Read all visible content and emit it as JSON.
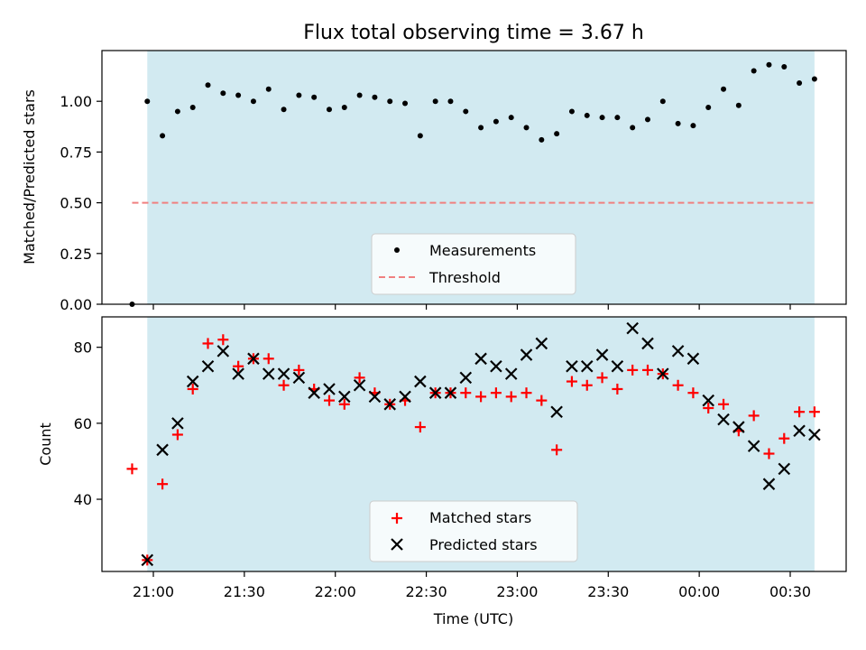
{
  "chart_data": [
    {
      "type": "scatter",
      "title": "Flux total observing time = 3.67 h",
      "xlabel": "",
      "ylabel": "Matched/Predicted stars",
      "ylim": [
        0,
        1.25
      ],
      "yticks": [
        "0.00",
        "0.25",
        "0.50",
        "0.75",
        "1.00"
      ],
      "grid": false,
      "legend_position": "lower center",
      "observing_window": {
        "start": "20:58",
        "end": "00:38",
        "color": "#add8e6"
      },
      "series": [
        {
          "name": "Measurements",
          "marker": "dot",
          "color": "#000000",
          "x": [
            "20:53",
            "20:58",
            "21:03",
            "21:08",
            "21:13",
            "21:18",
            "21:23",
            "21:28",
            "21:33",
            "21:38",
            "21:43",
            "21:48",
            "21:53",
            "21:58",
            "22:03",
            "22:08",
            "22:13",
            "22:18",
            "22:23",
            "22:28",
            "22:33",
            "22:38",
            "22:43",
            "22:48",
            "22:53",
            "22:58",
            "23:03",
            "23:08",
            "23:13",
            "23:18",
            "23:23",
            "23:28",
            "23:33",
            "23:38",
            "23:43",
            "23:48",
            "23:53",
            "23:58",
            "00:03",
            "00:08",
            "00:13",
            "00:18",
            "00:23",
            "00:28",
            "00:33",
            "00:38"
          ],
          "y": [
            0.0,
            1.0,
            0.83,
            0.95,
            0.97,
            1.08,
            1.04,
            1.03,
            1.0,
            1.06,
            0.96,
            1.03,
            1.02,
            0.96,
            0.97,
            1.03,
            1.02,
            1.0,
            0.99,
            0.83,
            1.0,
            1.0,
            0.95,
            0.87,
            0.9,
            0.92,
            0.87,
            0.81,
            0.84,
            0.95,
            0.93,
            0.92,
            0.92,
            0.87,
            0.91,
            1.0,
            0.89,
            0.88,
            0.97,
            1.06,
            0.98,
            1.15,
            1.18,
            1.17,
            1.09,
            1.11
          ]
        },
        {
          "name": "Threshold",
          "marker": "dashed-line",
          "color": "#f08080",
          "x": [
            "20:53",
            "00:38"
          ],
          "y": [
            0.5,
            0.5
          ]
        }
      ]
    },
    {
      "type": "scatter",
      "title": "",
      "xlabel": "Time (UTC)",
      "ylabel": "Count",
      "ylim": [
        21,
        88
      ],
      "yticks": [
        "40",
        "60",
        "80"
      ],
      "xticks": [
        "21:00",
        "21:30",
        "22:00",
        "22:30",
        "23:00",
        "23:30",
        "00:00",
        "00:30"
      ],
      "grid": false,
      "legend_position": "lower center",
      "observing_window": {
        "start": "20:58",
        "end": "00:38",
        "color": "#add8e6"
      },
      "series": [
        {
          "name": "Matched stars",
          "marker": "plus",
          "color": "#ff0000",
          "x": [
            "20:53",
            "20:58",
            "21:03",
            "21:08",
            "21:13",
            "21:18",
            "21:23",
            "21:28",
            "21:33",
            "21:38",
            "21:43",
            "21:48",
            "21:53",
            "21:58",
            "22:03",
            "22:08",
            "22:13",
            "22:18",
            "22:23",
            "22:28",
            "22:33",
            "22:38",
            "22:43",
            "22:48",
            "22:53",
            "22:58",
            "23:03",
            "23:08",
            "23:13",
            "23:18",
            "23:23",
            "23:28",
            "23:33",
            "23:38",
            "23:43",
            "23:48",
            "23:53",
            "23:58",
            "00:03",
            "00:08",
            "00:13",
            "00:18",
            "00:23",
            "00:28",
            "00:33",
            "00:38"
          ],
          "y": [
            48,
            24,
            44,
            57,
            69,
            81,
            82,
            75,
            77,
            77,
            70,
            74,
            69,
            66,
            65,
            72,
            68,
            65,
            66,
            59,
            68,
            68,
            68,
            67,
            68,
            67,
            68,
            66,
            53,
            71,
            70,
            72,
            69,
            74,
            74,
            73,
            70,
            68,
            64,
            65,
            58,
            62,
            52,
            56,
            63,
            63
          ]
        },
        {
          "name": "Predicted stars",
          "marker": "x",
          "color": "#000000",
          "x": [
            "20:58",
            "21:03",
            "21:08",
            "21:13",
            "21:18",
            "21:23",
            "21:28",
            "21:33",
            "21:38",
            "21:43",
            "21:48",
            "21:53",
            "21:58",
            "22:03",
            "22:08",
            "22:13",
            "22:18",
            "22:23",
            "22:28",
            "22:33",
            "22:38",
            "22:43",
            "22:48",
            "22:53",
            "22:58",
            "23:03",
            "23:08",
            "23:13",
            "23:18",
            "23:23",
            "23:28",
            "23:33",
            "23:38",
            "23:43",
            "23:48",
            "23:53",
            "23:58",
            "00:03",
            "00:08",
            "00:13",
            "00:18",
            "00:23",
            "00:28",
            "00:33",
            "00:38"
          ],
          "y": [
            24,
            53,
            60,
            71,
            75,
            79,
            73,
            77,
            73,
            73,
            72,
            68,
            69,
            67,
            70,
            67,
            65,
            67,
            71,
            68,
            68,
            72,
            77,
            75,
            73,
            78,
            81,
            63,
            75,
            75,
            78,
            75,
            85,
            81,
            73,
            79,
            77,
            66,
            61,
            59,
            54,
            44,
            48,
            58,
            57
          ]
        }
      ]
    }
  ]
}
